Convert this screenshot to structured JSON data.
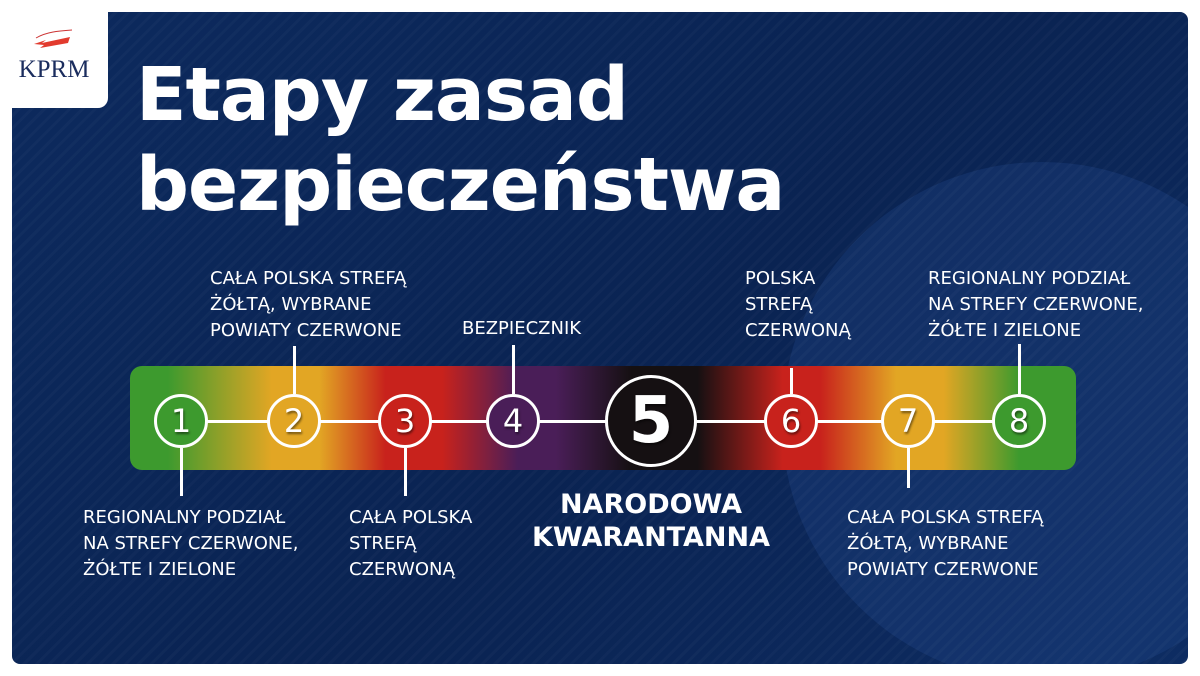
{
  "logo": {
    "text": "KPRM"
  },
  "title": {
    "line1": "Etapy zasad",
    "line2": "bezpieczeństwa"
  },
  "stages": [
    {
      "number": "1",
      "color": "#3d9a2e",
      "label": [
        "REGIONALNY PODZIAŁ",
        "NA STREFY CZERWONE,",
        "ŻÓŁTE I ZIELONE"
      ]
    },
    {
      "number": "2",
      "color": "#e2a624",
      "label": [
        "CAŁA POLSKA STREFĄ",
        "ŻÓŁTĄ, WYBRANE",
        "POWIATY CZERWONE"
      ]
    },
    {
      "number": "3",
      "color": "#c8221c",
      "label": [
        "CAŁA POLSKA",
        "STREFĄ",
        "CZERWONĄ"
      ]
    },
    {
      "number": "4",
      "color": "#4a1e58",
      "label": [
        "BEZPIECZNIK"
      ]
    },
    {
      "number": "5",
      "color": "#151012",
      "label": [
        "NARODOWA",
        "KWARANTANNA"
      ]
    },
    {
      "number": "6",
      "color": "#c8221c",
      "label": [
        "POLSKA",
        "STREFĄ",
        "CZERWONĄ"
      ]
    },
    {
      "number": "7",
      "color": "#e2a624",
      "label": [
        "CAŁA POLSKA STREFĄ",
        "ŻÓŁTĄ, WYBRANE",
        "POWIATY CZERWONE"
      ]
    },
    {
      "number": "8",
      "color": "#3d9a2e",
      "label": [
        "REGIONALNY PODZIAŁ",
        "NA STREFY CZERWONE,",
        "ŻÓŁTE I ZIELONE"
      ]
    }
  ]
}
